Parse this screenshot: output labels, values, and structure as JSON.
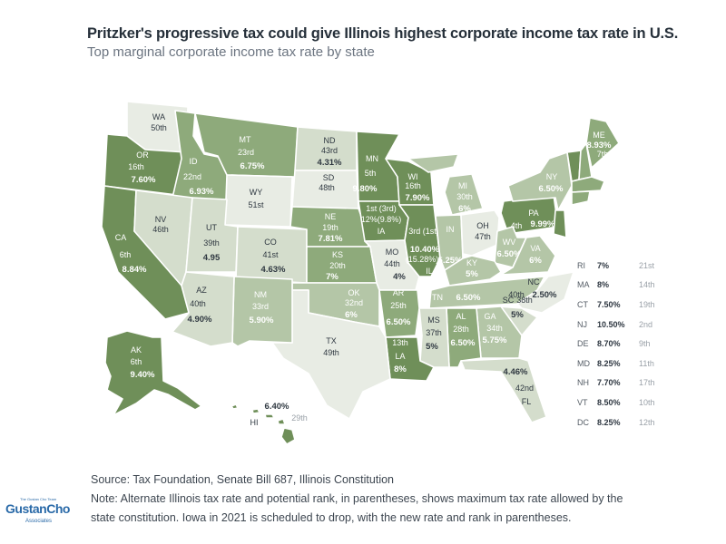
{
  "header": {
    "title": "Pritzker's progressive tax could give Illinois highest corporate income tax rate in U.S.",
    "subtitle": "Top marginal corporate income tax rate by state"
  },
  "colors": {
    "dark": "#6f8f59",
    "mid": "#8eaa7b",
    "light": "#b4c6a7",
    "pale": "#d4ddcc",
    "white": "#e8ece4",
    "text_dark": "#2f3841",
    "text_light": "#ffffff"
  },
  "states": [
    {
      "id": "WA",
      "tone": "white",
      "lines": [
        "WA",
        "50th"
      ]
    },
    {
      "id": "OR",
      "tone": "dark",
      "lines": [
        "OR",
        "16th",
        "7.60%"
      ]
    },
    {
      "id": "CA",
      "tone": "dark",
      "lines": [
        "CA",
        "6th",
        "8.84%"
      ]
    },
    {
      "id": "ID",
      "tone": "mid",
      "lines": [
        "ID",
        "22nd",
        "6.93%"
      ]
    },
    {
      "id": "MT",
      "tone": "mid",
      "lines": [
        "MT",
        "23rd",
        "6.75%"
      ]
    },
    {
      "id": "ND",
      "tone": "pale",
      "lines": [
        "ND",
        "43rd",
        "4.31%"
      ]
    },
    {
      "id": "SD",
      "tone": "white",
      "lines": [
        "SD",
        "48th"
      ]
    },
    {
      "id": "WY",
      "tone": "white",
      "lines": [
        "WY",
        "51st"
      ]
    },
    {
      "id": "NV",
      "tone": "pale",
      "lines": [
        "NV",
        "46th"
      ]
    },
    {
      "id": "UT",
      "tone": "pale",
      "lines": [
        "UT",
        "39th",
        "4.95"
      ]
    },
    {
      "id": "CO",
      "tone": "pale",
      "lines": [
        "CO",
        "41st",
        "4.63%"
      ]
    },
    {
      "id": "NE",
      "tone": "mid",
      "lines": [
        "NE",
        "19th",
        "7.81%"
      ]
    },
    {
      "id": "KS",
      "tone": "mid",
      "lines": [
        "KS",
        "20th",
        "7%"
      ]
    },
    {
      "id": "MN",
      "tone": "dark",
      "lines": [
        "MN",
        "5th",
        "9.80%"
      ]
    },
    {
      "id": "IA",
      "tone": "dark",
      "lines": [
        "1st (3rd)",
        "12%(9.8%)",
        "IA"
      ]
    },
    {
      "id": "MO",
      "tone": "white",
      "lines": [
        "MO",
        "44th",
        "4%"
      ]
    },
    {
      "id": "WI",
      "tone": "dark",
      "lines": [
        "WI",
        "16th",
        "7.90%"
      ]
    },
    {
      "id": "IL",
      "tone": "dark",
      "lines": [
        "3rd (1st)",
        "10.40%",
        "(15.28%)",
        "IL"
      ]
    },
    {
      "id": "IN",
      "tone": "light",
      "lines": [
        "IN",
        "5.25%"
      ]
    },
    {
      "id": "MI",
      "tone": "light",
      "lines": [
        "MI",
        "30th",
        "6%"
      ]
    },
    {
      "id": "OH",
      "tone": "white",
      "lines": [
        "OH",
        "47th"
      ]
    },
    {
      "id": "PA",
      "tone": "dark",
      "lines": [
        "PA",
        "4th",
        "9.99%"
      ]
    },
    {
      "id": "NY",
      "tone": "light",
      "lines": [
        "NY",
        "6.50%"
      ]
    },
    {
      "id": "VT",
      "tone": "dark",
      "lines": []
    },
    {
      "id": "NH",
      "tone": "mid",
      "lines": []
    },
    {
      "id": "ME",
      "tone": "mid",
      "lines": [
        "ME",
        "8.93%",
        "7th"
      ]
    },
    {
      "id": "MA",
      "tone": "mid",
      "lines": []
    },
    {
      "id": "CT",
      "tone": "mid",
      "lines": []
    },
    {
      "id": "NJ",
      "tone": "dark",
      "lines": []
    },
    {
      "id": "WV",
      "tone": "light",
      "lines": [
        "WV",
        "6.50%"
      ]
    },
    {
      "id": "VA",
      "tone": "light",
      "lines": [
        "VA",
        "6%"
      ]
    },
    {
      "id": "KY",
      "tone": "light",
      "lines": [
        "KY",
        "5%"
      ]
    },
    {
      "id": "TN",
      "tone": "light",
      "lines": [
        "TN",
        "6.50%"
      ]
    },
    {
      "id": "NC",
      "tone": "white",
      "lines": [
        "NC",
        "40th",
        "2.50%"
      ]
    },
    {
      "id": "SC",
      "tone": "pale",
      "lines": [
        "SC",
        "38th",
        "5%"
      ]
    },
    {
      "id": "GA",
      "tone": "light",
      "lines": [
        "GA",
        "34th",
        "5.75%"
      ]
    },
    {
      "id": "AL",
      "tone": "mid",
      "lines": [
        "AL",
        "28th",
        "6.50%"
      ]
    },
    {
      "id": "MS",
      "tone": "pale",
      "lines": [
        "MS",
        "37th",
        "5%"
      ]
    },
    {
      "id": "AR",
      "tone": "mid",
      "lines": [
        "AR",
        "25th",
        "6.50%"
      ]
    },
    {
      "id": "LA",
      "tone": "dark",
      "lines": [
        "13th",
        "LA",
        "8%"
      ]
    },
    {
      "id": "OK",
      "tone": "light",
      "lines": [
        "OK",
        "32nd",
        "6%"
      ]
    },
    {
      "id": "TX",
      "tone": "white",
      "lines": [
        "TX",
        "49th"
      ]
    },
    {
      "id": "NM",
      "tone": "light",
      "lines": [
        "NM",
        "33rd",
        "5.90%"
      ]
    },
    {
      "id": "AZ",
      "tone": "pale",
      "lines": [
        "AZ",
        "40th",
        "4.90%"
      ]
    },
    {
      "id": "FL",
      "tone": "pale",
      "lines": [
        "4.46%",
        "42nd",
        "FL"
      ]
    },
    {
      "id": "AK",
      "tone": "dark",
      "lines": [
        "AK",
        "6th",
        "9.40%"
      ]
    },
    {
      "id": "HI",
      "tone": "dark",
      "lines": [
        "6.40%",
        "29th",
        "HI"
      ]
    }
  ],
  "legend": [
    {
      "state": "RI",
      "rate": "7%",
      "rank": "21st"
    },
    {
      "state": "MA",
      "rate": "8%",
      "rank": "14th"
    },
    {
      "state": "CT",
      "rate": "7.50%",
      "rank": "19th"
    },
    {
      "state": "NJ",
      "rate": "10.50%",
      "rank": "2nd"
    },
    {
      "state": "DE",
      "rate": "8.70%",
      "rank": "9th"
    },
    {
      "state": "MD",
      "rate": "8.25%",
      "rank": "11th"
    },
    {
      "state": "NH",
      "rate": "7.70%",
      "rank": "17th"
    },
    {
      "state": "VT",
      "rate": "8.50%",
      "rank": "10th"
    },
    {
      "state": "DC",
      "rate": "8.25%",
      "rank": "12th"
    }
  ],
  "footer": {
    "source": "Source: Tax Foundation, Senate Bill 687, Illinois Constitution",
    "note_1": "Note: Alternate Illinois tax rate and potential rank, in parentheses, shows maximum tax rate allowed by the",
    "note_2": "state constitution. Iowa in 2021 is scheduled to drop, with the new rate and rank in parentheses."
  },
  "logo": {
    "tagline": "The Gustan Cho Team",
    "name": "GustanCho",
    "sub": "Associates"
  }
}
